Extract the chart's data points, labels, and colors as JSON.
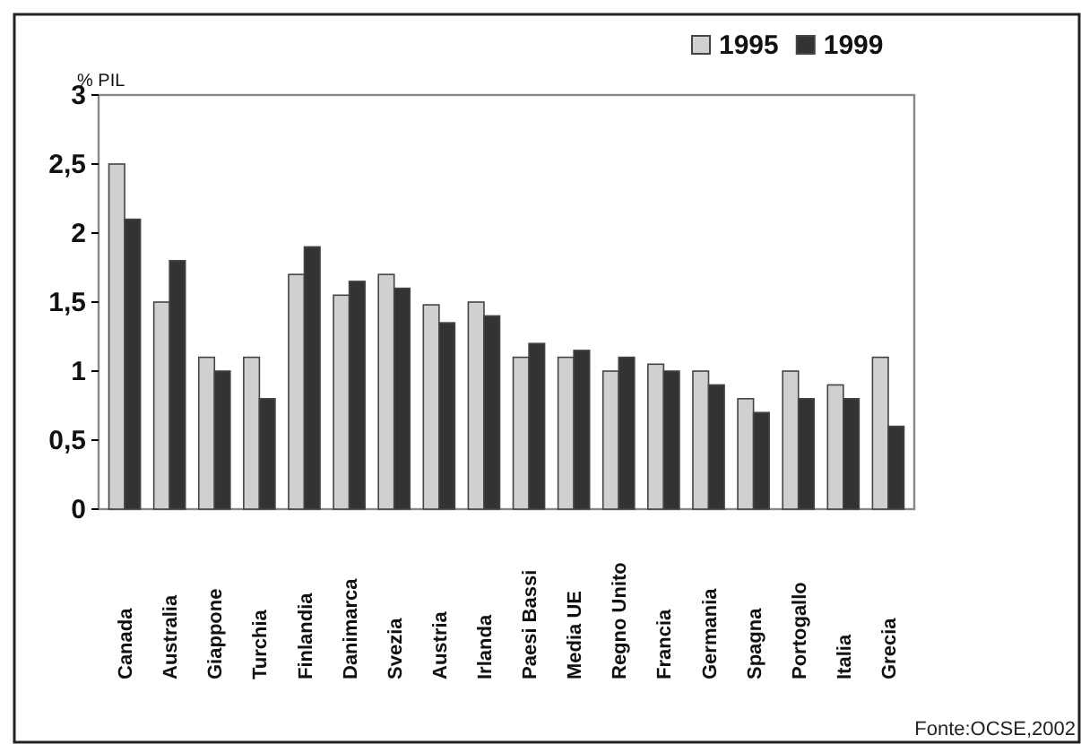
{
  "chart_data": {
    "type": "bar",
    "ylabel": "% PIL",
    "categories": [
      "Canada",
      "Australia",
      "Giappone",
      "Turchia",
      "Finlandia",
      "Danimarca",
      "Svezia",
      "Austria",
      "Irlanda",
      "Paesi Bassi",
      "Media UE",
      "Regno Unito",
      "Francia",
      "Germania",
      "Spagna",
      "Portogallo",
      "Italia",
      "Grecia"
    ],
    "series": [
      {
        "name": "1995",
        "color": "#d0d0d0",
        "values": [
          2.5,
          1.5,
          1.1,
          1.1,
          1.7,
          1.55,
          1.7,
          1.48,
          1.5,
          1.1,
          1.1,
          1.0,
          1.05,
          1.0,
          0.8,
          1.0,
          0.9,
          1.1
        ]
      },
      {
        "name": "1999",
        "color": "#333333",
        "values": [
          2.1,
          1.8,
          1.0,
          0.8,
          1.9,
          1.65,
          1.6,
          1.35,
          1.4,
          1.2,
          1.15,
          1.1,
          1.0,
          0.9,
          0.7,
          0.8,
          0.8,
          0.6
        ]
      }
    ],
    "ylim": [
      0,
      3
    ],
    "yticks": [
      0,
      {
        "value": 0.5,
        "label": "0,5"
      },
      1,
      {
        "value": 1.5,
        "label": "1,5"
      },
      2,
      {
        "value": 2.5,
        "label": "2,5"
      },
      3
    ],
    "grid": false,
    "legend": "top right",
    "annotations": [
      "Fonte:OCSE,2002"
    ]
  }
}
